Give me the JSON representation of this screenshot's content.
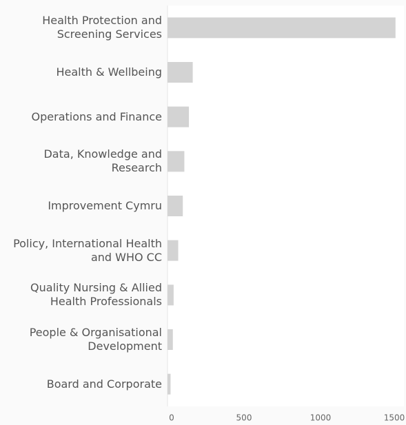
{
  "chart_data": {
    "type": "bar",
    "orientation": "horizontal",
    "categories": [
      "Health Protection and Screening Services",
      "Health & Wellbeing",
      "Operations and Finance",
      "Data, Knowledge and Research",
      "Improvement Cymru",
      "Policy, International Health and WHO CC",
      "Quality Nursing & Allied Health Professionals",
      "People & Organisational Development",
      "Board and Corporate"
    ],
    "values": [
      1490,
      165,
      140,
      110,
      100,
      70,
      40,
      35,
      20
    ],
    "color": "#d3d3d3",
    "xlim": [
      0,
      1500
    ],
    "xticks": [
      0,
      500,
      1000,
      1500
    ],
    "grid": false
  }
}
